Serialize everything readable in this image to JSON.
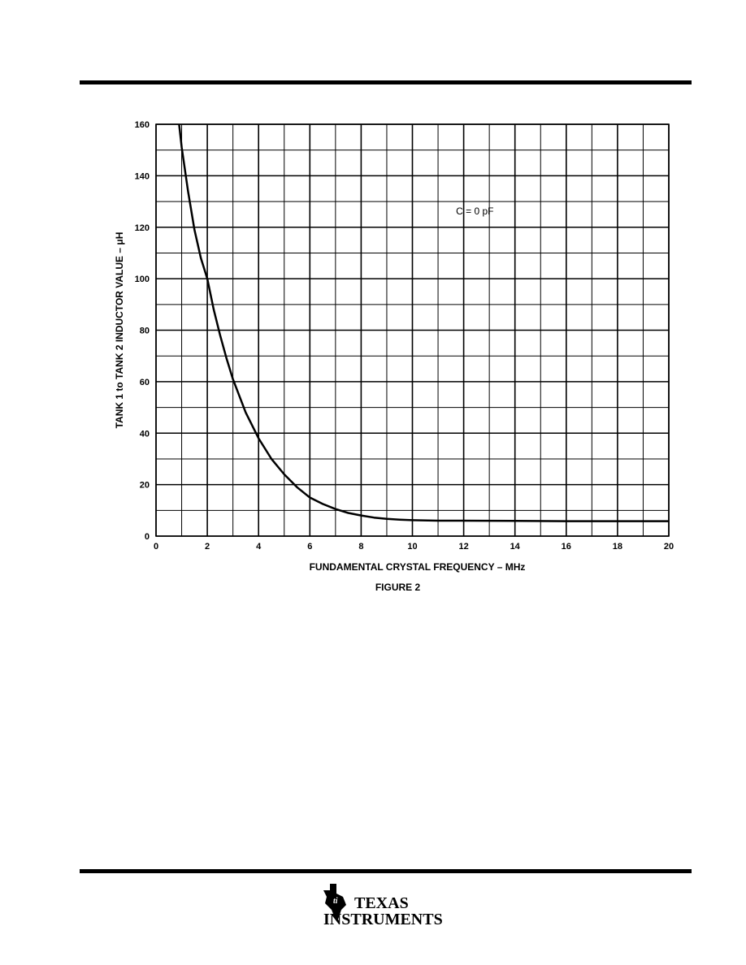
{
  "chart_data": {
    "type": "line",
    "title": "",
    "xlabel": "FUNDAMENTAL CRYSTAL FREQUENCY – MHz",
    "ylabel": "TANK 1 to TANK 2 INDUCTOR VALUE – μH",
    "xlim": [
      0,
      20
    ],
    "ylim": [
      0,
      160
    ],
    "x_ticks": [
      0,
      2,
      4,
      6,
      8,
      10,
      12,
      14,
      16,
      18,
      20
    ],
    "y_ticks": [
      0,
      20,
      40,
      60,
      80,
      100,
      120,
      140,
      160
    ],
    "x_minor_step": 1,
    "y_minor_step": 10,
    "grid": true,
    "annotation": "C = 0 pF",
    "series": [
      {
        "x": [
          0.9,
          1.0,
          1.25,
          1.5,
          1.75,
          2.0,
          2.25,
          2.5,
          2.75,
          3.0,
          3.5,
          4.0,
          4.5,
          5.0,
          5.5,
          6.0,
          6.5,
          7.0,
          7.5,
          8.0,
          8.5,
          9.0,
          9.5,
          10.0,
          11.0,
          12.0,
          14.0,
          16.0,
          18.0,
          20.0
        ],
        "y": [
          160,
          151,
          134,
          119,
          108,
          100,
          88,
          78,
          69,
          61,
          48,
          38,
          30,
          24,
          19,
          15,
          12.5,
          10.5,
          9,
          8,
          7.2,
          6.7,
          6.4,
          6.2,
          6.0,
          6.0,
          5.9,
          5.8,
          5.8,
          5.8
        ]
      }
    ]
  },
  "figure": {
    "caption": "FIGURE 2"
  },
  "logo": {
    "line1": "TEXAS",
    "line2": "INSTRUMENTS"
  }
}
